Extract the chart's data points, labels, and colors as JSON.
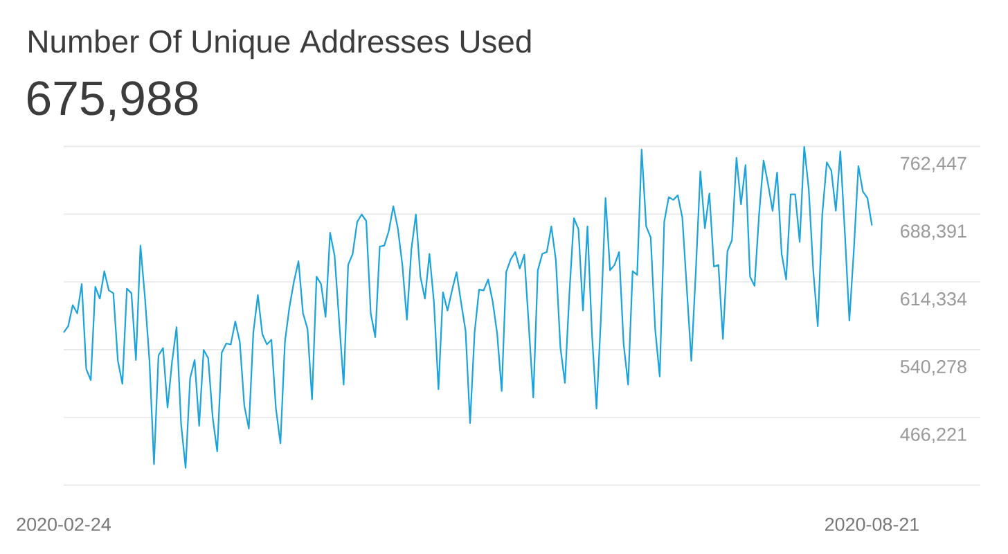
{
  "chart_data": {
    "type": "line",
    "title": "Number Of Unique Addresses Used",
    "subtitle": "675,988",
    "x": [
      "2020-02-24",
      "2020-02-25",
      "2020-02-26",
      "2020-02-27",
      "2020-02-28",
      "2020-02-29",
      "2020-03-01",
      "2020-03-02",
      "2020-03-03",
      "2020-03-04",
      "2020-03-05",
      "2020-03-06",
      "2020-03-07",
      "2020-03-08",
      "2020-03-09",
      "2020-03-10",
      "2020-03-11",
      "2020-03-12",
      "2020-03-13",
      "2020-03-14",
      "2020-03-15",
      "2020-03-16",
      "2020-03-17",
      "2020-03-18",
      "2020-03-19",
      "2020-03-20",
      "2020-03-21",
      "2020-03-22",
      "2020-03-23",
      "2020-03-24",
      "2020-03-25",
      "2020-03-26",
      "2020-03-27",
      "2020-03-28",
      "2020-03-29",
      "2020-03-30",
      "2020-03-31",
      "2020-04-01",
      "2020-04-02",
      "2020-04-03",
      "2020-04-04",
      "2020-04-05",
      "2020-04-06",
      "2020-04-07",
      "2020-04-08",
      "2020-04-09",
      "2020-04-10",
      "2020-04-11",
      "2020-04-12",
      "2020-04-13",
      "2020-04-14",
      "2020-04-15",
      "2020-04-16",
      "2020-04-17",
      "2020-04-18",
      "2020-04-19",
      "2020-04-20",
      "2020-04-21",
      "2020-04-22",
      "2020-04-23",
      "2020-04-24",
      "2020-04-25",
      "2020-04-26",
      "2020-04-27",
      "2020-04-28",
      "2020-04-29",
      "2020-04-30",
      "2020-05-01",
      "2020-05-02",
      "2020-05-03",
      "2020-05-04",
      "2020-05-05",
      "2020-05-06",
      "2020-05-07",
      "2020-05-08",
      "2020-05-09",
      "2020-05-10",
      "2020-05-11",
      "2020-05-12",
      "2020-05-13",
      "2020-05-14",
      "2020-05-15",
      "2020-05-16",
      "2020-05-17",
      "2020-05-18",
      "2020-05-19",
      "2020-05-20",
      "2020-05-21",
      "2020-05-22",
      "2020-05-23",
      "2020-05-24",
      "2020-05-25",
      "2020-05-26",
      "2020-05-27",
      "2020-05-28",
      "2020-05-29",
      "2020-05-30",
      "2020-05-31",
      "2020-06-01",
      "2020-06-02",
      "2020-06-03",
      "2020-06-04",
      "2020-06-05",
      "2020-06-06",
      "2020-06-07",
      "2020-06-08",
      "2020-06-09",
      "2020-06-10",
      "2020-06-11",
      "2020-06-12",
      "2020-06-13",
      "2020-06-14",
      "2020-06-15",
      "2020-06-16",
      "2020-06-17",
      "2020-06-18",
      "2020-06-19",
      "2020-06-20",
      "2020-06-21",
      "2020-06-22",
      "2020-06-23",
      "2020-06-24",
      "2020-06-25",
      "2020-06-26",
      "2020-06-27",
      "2020-06-28",
      "2020-06-29",
      "2020-06-30",
      "2020-07-01",
      "2020-07-02",
      "2020-07-03",
      "2020-07-04",
      "2020-07-05",
      "2020-07-06",
      "2020-07-07",
      "2020-07-08",
      "2020-07-09",
      "2020-07-10",
      "2020-07-11",
      "2020-07-12",
      "2020-07-13",
      "2020-07-14",
      "2020-07-15",
      "2020-07-16",
      "2020-07-17",
      "2020-07-18",
      "2020-07-19",
      "2020-07-20",
      "2020-07-21",
      "2020-07-22",
      "2020-07-23",
      "2020-07-24",
      "2020-07-25",
      "2020-07-26",
      "2020-07-27",
      "2020-07-28",
      "2020-07-29",
      "2020-07-30",
      "2020-07-31",
      "2020-08-01",
      "2020-08-02",
      "2020-08-03",
      "2020-08-04",
      "2020-08-05",
      "2020-08-06",
      "2020-08-07",
      "2020-08-08",
      "2020-08-09",
      "2020-08-10",
      "2020-08-11",
      "2020-08-12",
      "2020-08-13",
      "2020-08-14",
      "2020-08-15",
      "2020-08-16",
      "2020-08-17",
      "2020-08-18",
      "2020-08-19",
      "2020-08-20",
      "2020-08-21"
    ],
    "series": [
      {
        "color": "#1aa3dc",
        "values": [
          559000,
          566000,
          589000,
          580000,
          612000,
          519000,
          507000,
          609000,
          596000,
          626000,
          605000,
          602000,
          528000,
          503000,
          607000,
          602000,
          529000,
          654000,
          597000,
          528000,
          415000,
          534000,
          542000,
          477000,
          527000,
          565000,
          459000,
          411000,
          509000,
          529000,
          457000,
          540000,
          531000,
          466000,
          429000,
          537000,
          547000,
          546000,
          571000,
          549000,
          479000,
          454000,
          559000,
          600000,
          557000,
          546000,
          551000,
          476000,
          438000,
          549000,
          587000,
          615000,
          637000,
          580000,
          563000,
          486000,
          620000,
          612000,
          576000,
          668000,
          643000,
          572000,
          502000,
          633000,
          645000,
          680000,
          688000,
          681000,
          580000,
          554000,
          653000,
          654000,
          670000,
          697000,
          673000,
          633000,
          573000,
          650000,
          688000,
          620000,
          596000,
          645000,
          592000,
          497000,
          603000,
          583000,
          605000,
          625000,
          592000,
          561000,
          460000,
          559000,
          606000,
          605000,
          617000,
          593000,
          558000,
          495000,
          625000,
          639000,
          647000,
          629000,
          644000,
          567000,
          488000,
          627000,
          645000,
          647000,
          675000,
          638000,
          543000,
          504000,
          602000,
          684000,
          672000,
          583000,
          675000,
          557000,
          476000,
          577000,
          706000,
          627000,
          633000,
          647000,
          547000,
          502000,
          626000,
          622000,
          759000,
          675000,
          663000,
          562000,
          511000,
          680000,
          707000,
          704000,
          709000,
          685000,
          607000,
          528000,
          627000,
          735000,
          673000,
          711000,
          631000,
          633000,
          552000,
          648000,
          660000,
          750000,
          699000,
          742000,
          620000,
          610000,
          688000,
          747000,
          721000,
          692000,
          734000,
          645000,
          617000,
          710000,
          710000,
          658000,
          762000,
          716000,
          627000,
          566000,
          688000,
          745000,
          736000,
          692000,
          757000,
          668000,
          572000,
          650000,
          741000,
          713000,
          706000,
          676000
        ]
      }
    ],
    "xlim": [
      "2020-02-24",
      "2020-09-14"
    ],
    "xticks": [
      {
        "value": "2020-02-24",
        "label": "2020-02-24"
      },
      {
        "value": "2020-08-21",
        "label": "2020-08-21"
      }
    ],
    "ylim": [
      392165,
      762447
    ],
    "yticks": [
      {
        "value": 392165,
        "label": null
      },
      {
        "value": 466221,
        "label": "466,221"
      },
      {
        "value": 540278,
        "label": "540,278"
      },
      {
        "value": 614334,
        "label": "614,334"
      },
      {
        "value": 688391,
        "label": "688,391"
      },
      {
        "value": 762447,
        "label": "762,447"
      }
    ],
    "grid": "y"
  }
}
